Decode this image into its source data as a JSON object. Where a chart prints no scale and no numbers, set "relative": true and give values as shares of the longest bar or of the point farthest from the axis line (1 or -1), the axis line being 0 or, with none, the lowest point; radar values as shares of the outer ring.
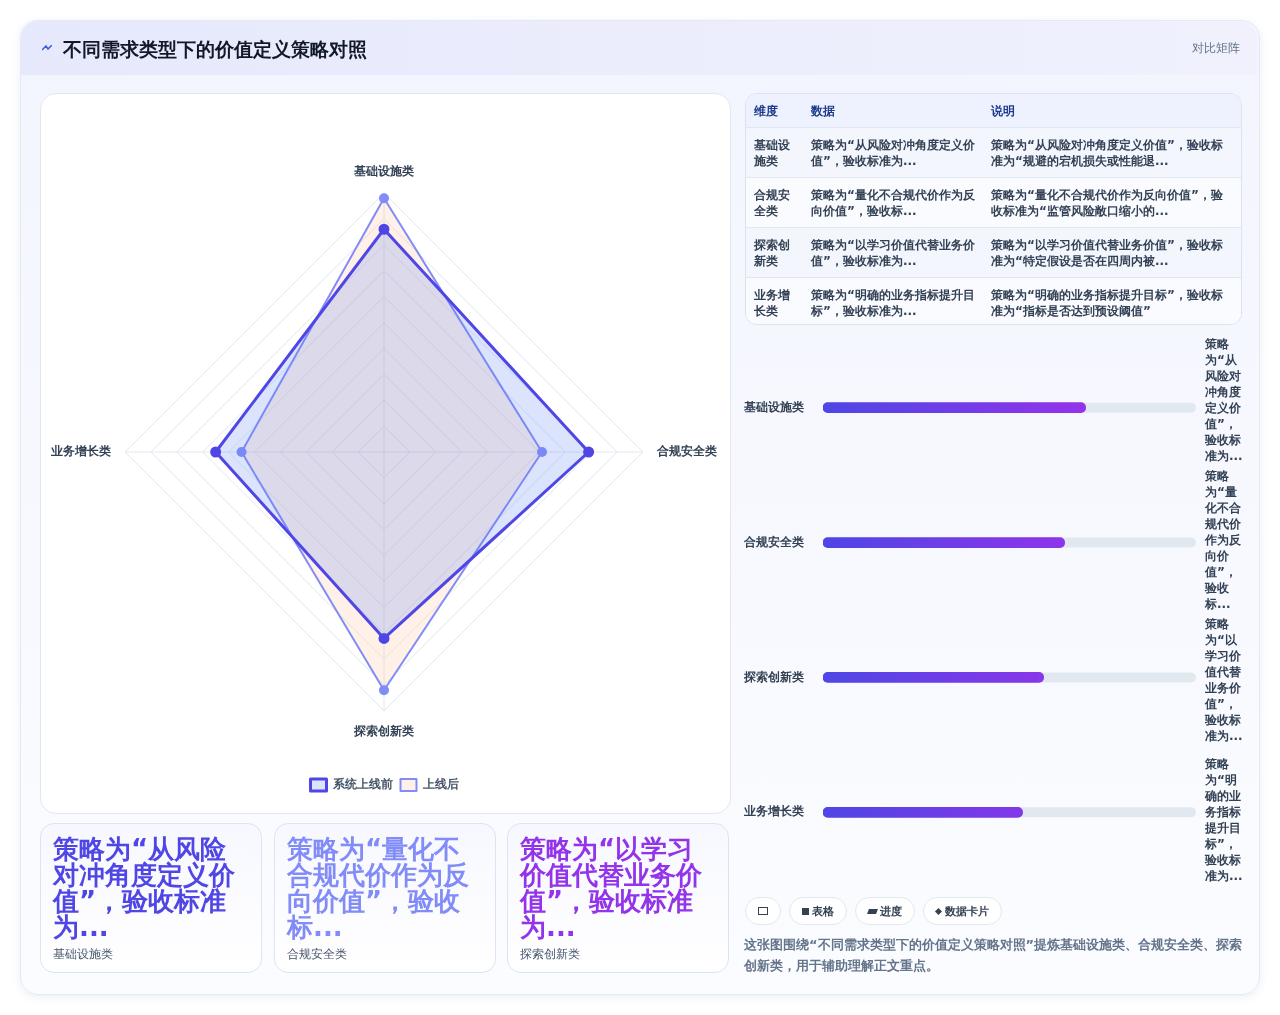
{
  "chart_data": [
    {
      "type": "radar",
      "title": "不同需求类型下的价值定义策略对照",
      "annotations": [
        "对比矩阵"
      ],
      "categories": [
        "基础设施类",
        "合规安全类",
        "探索创新类",
        "业务增长类"
      ],
      "relative": true,
      "grid": true,
      "legend": "bottom",
      "marker": "circle",
      "series": [
        {
          "name": "系统上线前",
          "color": "#4f46e5",
          "values": [
            0.86,
            0.79,
            0.72,
            0.65
          ]
        },
        {
          "name": "上线后",
          "color": "#818cf8",
          "values": [
            0.98,
            0.61,
            0.92,
            0.55
          ]
        }
      ]
    },
    {
      "type": "other",
      "annotations": [
        "维度",
        "数据",
        "说明",
        "基础设施类",
        "策略为“从风险对冲角度定义价值”，验收标准为...",
        "策略为“从风险对冲角度定义价值”，验收标准为“规避的宕机损失或性能退...",
        "合规安全类",
        "策略为“量化不合规代价作为反向价值”，验收标...",
        "策略为“量化不合规代价作为反向价值”，验收标准为“监管风险敞口缩小的...",
        "探索创新类",
        "策略为“以学习价值代替业务价值”，验收标准为...",
        "策略为“以学习价值代替业务价值”，验收标准为“特定假设是否在四周内被...",
        "业务增长类",
        "策略为“明确的业务指标提升目标”，验收标准为...",
        "策略为“明确的业务指标提升目标”，验收标准为“指标是否达到预设阈值”"
      ]
    },
    {
      "type": "bar",
      "orientation": "horizontal",
      "relative": true,
      "categories": [
        "基础设施类",
        "合规安全类",
        "探索创新类",
        "业务增长类"
      ],
      "values": [
        1,
        0.92,
        0.84,
        0.76
      ],
      "color": "#4f46e5",
      "annotations": [
        "策略为“从风险对冲角度定义价值”，验收标准为...",
        "策略为“量化不合规代价作为反向价值”，验收标...",
        "策略为“以学习价值代替业务价值”，验收标准为...",
        "策略为“明确的业务指标提升目标”，验收标准为..."
      ]
    },
    {
      "type": "other",
      "annotations": [
        "策略为“从风险对冲角度定义价值”，验收标准为...",
        "基础设施类",
        "策略为“量化不合规代价作为反向价值”，验收标...",
        "合规安全类",
        "策略为“以学习价值代替业务价值”，验收标准为...",
        "探索创新类"
      ]
    },
    {
      "type": "other",
      "annotations": [
        "表格",
        "进度",
        "数据卡片",
        "这张图围绕“不同需求类型下的价值定义策略对照”提炼基础设施类、合规安全类、探索创新类，用于辅助理解正文重点。"
      ]
    }
  ]
}
